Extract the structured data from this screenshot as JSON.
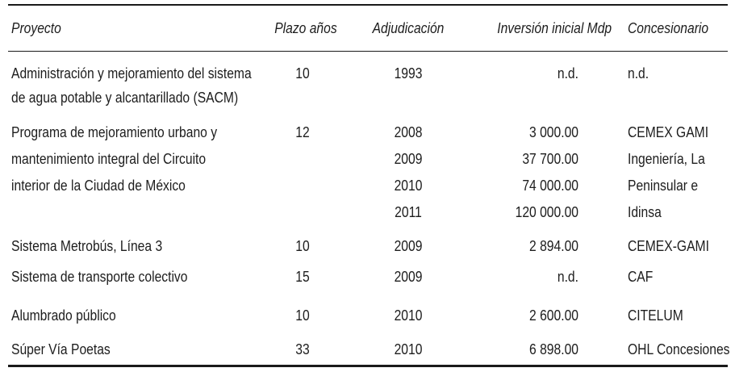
{
  "page": {
    "background_color": "#ffffff",
    "text_color": "#1d1d1d",
    "rule_color": "#1a1a1a"
  },
  "table": {
    "headers": {
      "proyecto": "Proyecto",
      "plazo": "Plazo años",
      "adjudicacion": "Adjudicación",
      "inversion": "Inversión inicial Mdp",
      "concesionario": "Concesionario"
    },
    "rows": [
      {
        "proyecto": [
          "Administración y mejoramiento del sistema",
          "de agua potable y alcantarillado (SACM)"
        ],
        "plazo": "10",
        "adjudicacion": [
          "1993"
        ],
        "inversion": [
          "n.d."
        ],
        "concesionario": [
          "n.d."
        ]
      },
      {
        "proyecto": [
          "Programa de mejoramiento urbano y",
          "mantenimiento integral del Circuito",
          "interior de la Ciudad de México"
        ],
        "plazo": "12",
        "adjudicacion": [
          "2008",
          "2009",
          "2010",
          "2011"
        ],
        "inversion": [
          "3 000.00",
          "37 700.00",
          "74 000.00",
          "120 000.00"
        ],
        "concesionario": [
          "CEMEX GAMI",
          "Ingeniería, La",
          "Peninsular e",
          "Idinsa"
        ]
      },
      {
        "proyecto": [
          "Sistema Metrobús, Línea 3"
        ],
        "plazo": "10",
        "adjudicacion": [
          "2009"
        ],
        "inversion": [
          "2 894.00"
        ],
        "concesionario": [
          "CEMEX-GAMI"
        ]
      },
      {
        "proyecto": [
          "Sistema de transporte colectivo"
        ],
        "plazo": "15",
        "adjudicacion": [
          "2009"
        ],
        "inversion": [
          "n.d."
        ],
        "concesionario": [
          "CAF"
        ]
      },
      {
        "proyecto": [
          "Alumbrado público"
        ],
        "plazo": "10",
        "adjudicacion": [
          "2010"
        ],
        "inversion": [
          "2 600.00"
        ],
        "concesionario": [
          "CITELUM"
        ]
      },
      {
        "proyecto": [
          "Súper Vía Poetas"
        ],
        "plazo": "33",
        "adjudicacion": [
          "2010"
        ],
        "inversion": [
          "6 898.00"
        ],
        "concesionario": [
          "OHL Concesiones"
        ]
      }
    ]
  }
}
